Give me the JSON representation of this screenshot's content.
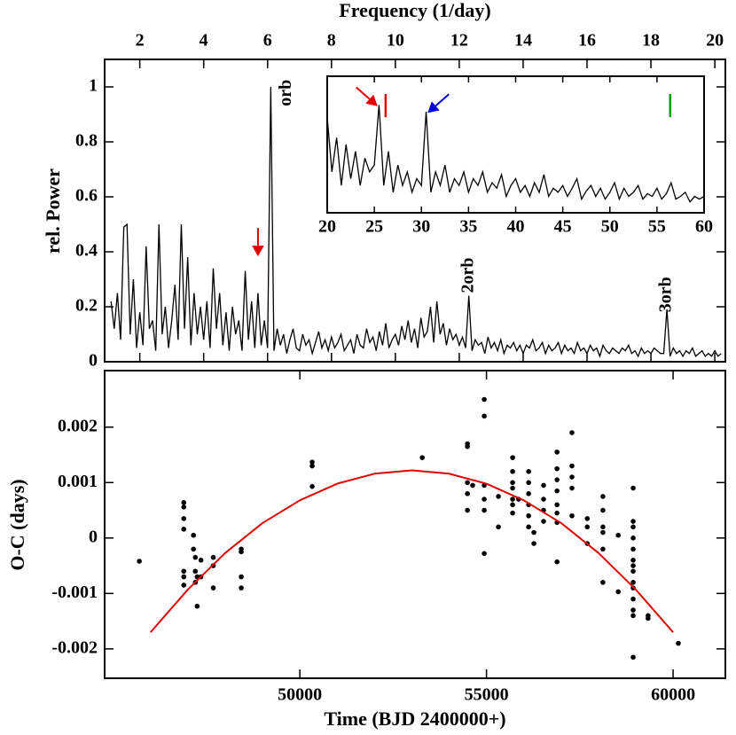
{
  "chart_data": [
    {
      "type": "line",
      "xlabel": "Frequency (1/day)",
      "ylabel": "rel. Power",
      "color": "#000000",
      "xlim": [
        0.9,
        20.33
      ],
      "ylim": [
        0,
        1.1
      ],
      "xticks": [
        2,
        4,
        6,
        8,
        10,
        12,
        14,
        16,
        18,
        20
      ],
      "yticks": [
        0,
        0.2,
        0.4,
        0.6,
        0.8,
        1
      ],
      "x": [
        1.1,
        1.2,
        1.3,
        1.4,
        1.5,
        1.6,
        1.7,
        1.8,
        1.9,
        2.0,
        2.1,
        2.2,
        2.3,
        2.4,
        2.5,
        2.6,
        2.7,
        2.8,
        2.9,
        3.0,
        3.1,
        3.2,
        3.3,
        3.4,
        3.5,
        3.6,
        3.7,
        3.8,
        3.9,
        4.0,
        4.1,
        4.2,
        4.3,
        4.4,
        4.5,
        4.6,
        4.7,
        4.8,
        4.9,
        5.0,
        5.1,
        5.2,
        5.3,
        5.4,
        5.5,
        5.6,
        5.7,
        5.8,
        5.9,
        6.0,
        6.1,
        6.2,
        6.3,
        6.4,
        6.5,
        6.6,
        6.7,
        6.8,
        6.9,
        7.0,
        7.1,
        7.2,
        7.3,
        7.4,
        7.5,
        7.6,
        7.7,
        7.8,
        7.9,
        8.0,
        8.1,
        8.2,
        8.3,
        8.4,
        8.5,
        8.6,
        8.7,
        8.8,
        8.9,
        9.0,
        9.1,
        9.2,
        9.3,
        9.4,
        9.5,
        9.6,
        9.7,
        9.8,
        9.9,
        10.0,
        10.1,
        10.2,
        10.3,
        10.4,
        10.5,
        10.6,
        10.7,
        10.8,
        10.9,
        11.0,
        11.1,
        11.2,
        11.3,
        11.4,
        11.5,
        11.6,
        11.7,
        11.8,
        11.9,
        12.0,
        12.1,
        12.2,
        12.3,
        12.4,
        12.5,
        12.6,
        12.7,
        12.8,
        12.9,
        13.0,
        13.1,
        13.2,
        13.3,
        13.4,
        13.5,
        13.6,
        13.7,
        13.8,
        13.9,
        14.0,
        14.1,
        14.2,
        14.3,
        14.4,
        14.5,
        14.6,
        14.7,
        14.8,
        14.9,
        15.0,
        15.1,
        15.2,
        15.3,
        15.4,
        15.5,
        15.6,
        15.7,
        15.8,
        15.9,
        16.0,
        16.1,
        16.2,
        16.3,
        16.4,
        16.5,
        16.6,
        16.7,
        16.8,
        16.9,
        17.0,
        17.1,
        17.2,
        17.3,
        17.4,
        17.5,
        17.6,
        17.7,
        17.8,
        17.9,
        18.0,
        18.1,
        18.2,
        18.3,
        18.4,
        18.5,
        18.6,
        18.7,
        18.8,
        18.9,
        19.0,
        19.1,
        19.2,
        19.3,
        19.4,
        19.5,
        19.6,
        19.7,
        19.8,
        19.9,
        20.0,
        20.1,
        20.2
      ],
      "values": [
        0.22,
        0.12,
        0.25,
        0.08,
        0.49,
        0.5,
        0.1,
        0.3,
        0.05,
        0.18,
        0.06,
        0.42,
        0.12,
        0.15,
        0.04,
        0.5,
        0.1,
        0.2,
        0.05,
        0.15,
        0.28,
        0.08,
        0.5,
        0.12,
        0.38,
        0.06,
        0.25,
        0.1,
        0.2,
        0.08,
        0.22,
        0.05,
        0.34,
        0.12,
        0.25,
        0.06,
        0.18,
        0.04,
        0.2,
        0.1,
        0.15,
        0.04,
        0.33,
        0.08,
        0.22,
        0.05,
        0.25,
        0.06,
        0.15,
        0.05,
        1.0,
        0.04,
        0.12,
        0.06,
        0.1,
        0.03,
        0.08,
        0.12,
        0.05,
        0.04,
        0.1,
        0.06,
        0.08,
        0.03,
        0.07,
        0.11,
        0.05,
        0.08,
        0.04,
        0.09,
        0.05,
        0.07,
        0.1,
        0.04,
        0.06,
        0.08,
        0.03,
        0.1,
        0.06,
        0.05,
        0.12,
        0.07,
        0.09,
        0.04,
        0.11,
        0.06,
        0.14,
        0.05,
        0.08,
        0.1,
        0.06,
        0.13,
        0.08,
        0.15,
        0.07,
        0.12,
        0.05,
        0.16,
        0.09,
        0.11,
        0.2,
        0.07,
        0.22,
        0.1,
        0.14,
        0.06,
        0.12,
        0.08,
        0.1,
        0.06,
        0.09,
        0.05,
        0.24,
        0.04,
        0.08,
        0.06,
        0.07,
        0.03,
        0.09,
        0.05,
        0.07,
        0.04,
        0.08,
        0.03,
        0.06,
        0.05,
        0.07,
        0.04,
        0.06,
        0.03,
        0.06,
        0.05,
        0.08,
        0.04,
        0.05,
        0.07,
        0.03,
        0.06,
        0.04,
        0.05,
        0.07,
        0.03,
        0.06,
        0.04,
        0.05,
        0.03,
        0.07,
        0.04,
        0.05,
        0.03,
        0.06,
        0.04,
        0.05,
        0.02,
        0.06,
        0.04,
        0.03,
        0.05,
        0.04,
        0.03,
        0.05,
        0.04,
        0.06,
        0.03,
        0.04,
        0.02,
        0.05,
        0.03,
        0.04,
        0.03,
        0.05,
        0.04,
        0.03,
        0.03,
        0.19,
        0.02,
        0.05,
        0.03,
        0.04,
        0.02,
        0.04,
        0.03,
        0.05,
        0.02,
        0.03,
        0.04,
        0.02,
        0.03,
        0.02,
        0.04,
        0.02,
        0.03
      ],
      "annotations": [
        {
          "text": "orb",
          "x": 6.6,
          "y": 0.93
        },
        {
          "text": "2orb",
          "x": 12.3,
          "y": 0.25
        },
        {
          "text": "3orb",
          "x": 18.5,
          "y": 0.18
        }
      ],
      "arrows": [
        {
          "x": 5.7,
          "y": 0.39,
          "color": "#e00000",
          "from": "above"
        }
      ]
    },
    {
      "type": "line",
      "color": "#000000",
      "xlim": [
        20,
        60
      ],
      "ylim": [
        0,
        1
      ],
      "xticks": [
        20,
        25,
        30,
        35,
        40,
        45,
        50,
        55,
        60
      ],
      "x": [
        20,
        20.5,
        21,
        21.5,
        22,
        22.5,
        23,
        23.5,
        24,
        24.5,
        25,
        25.5,
        26,
        26.5,
        27,
        27.5,
        28,
        28.5,
        29,
        29.5,
        30,
        30.5,
        31,
        31.5,
        32,
        32.5,
        33,
        33.5,
        34,
        34.5,
        35,
        35.5,
        36,
        36.5,
        37,
        37.5,
        38,
        38.5,
        39,
        39.5,
        40,
        40.5,
        41,
        41.5,
        42,
        42.5,
        43,
        43.5,
        44,
        44.5,
        45,
        45.5,
        46,
        46.5,
        47,
        47.5,
        48,
        48.5,
        49,
        49.5,
        50,
        50.5,
        51,
        51.5,
        52,
        52.5,
        53,
        53.5,
        54,
        54.5,
        55,
        55.5,
        56,
        56.5,
        57,
        57.5,
        58,
        58.5,
        59,
        59.5,
        60
      ],
      "values": [
        0.7,
        0.3,
        0.55,
        0.2,
        0.5,
        0.25,
        0.45,
        0.2,
        0.4,
        0.3,
        0.35,
        0.79,
        0.2,
        0.45,
        0.15,
        0.35,
        0.2,
        0.3,
        0.15,
        0.25,
        0.2,
        0.74,
        0.15,
        0.3,
        0.2,
        0.35,
        0.15,
        0.25,
        0.2,
        0.3,
        0.15,
        0.25,
        0.2,
        0.3,
        0.15,
        0.22,
        0.18,
        0.28,
        0.12,
        0.2,
        0.25,
        0.15,
        0.2,
        0.12,
        0.22,
        0.15,
        0.28,
        0.12,
        0.18,
        0.15,
        0.2,
        0.12,
        0.18,
        0.25,
        0.1,
        0.16,
        0.2,
        0.12,
        0.18,
        0.1,
        0.15,
        0.22,
        0.1,
        0.18,
        0.12,
        0.15,
        0.2,
        0.1,
        0.14,
        0.12,
        0.18,
        0.1,
        0.14,
        0.22,
        0.1,
        0.12,
        0.15,
        0.08,
        0.12,
        0.1,
        0.12
      ],
      "markers": [
        {
          "x": 26.2,
          "y": [
            0.7,
            0.87
          ],
          "color": "#e00000"
        },
        {
          "x": 56.4,
          "y": [
            0.7,
            0.87
          ],
          "color": "#00a000"
        }
      ],
      "arrows": [
        {
          "x": 25.2,
          "y": 0.79,
          "color": "#e00000",
          "from": "upper-left"
        },
        {
          "x": 30.8,
          "y": 0.74,
          "color": "#0000e0",
          "from": "upper-right"
        }
      ]
    },
    {
      "type": "scatter",
      "xlabel": "Time (BJD 2400000+)",
      "ylabel": "O-C (days)",
      "color": "#000000",
      "xlim": [
        44770,
        61400
      ],
      "ylim": [
        -0.00253,
        0.00302
      ],
      "xticks": [
        50000,
        55000,
        60000
      ],
      "yticks": [
        -0.002,
        -0.001,
        0,
        0.001,
        0.002
      ],
      "x": [
        45700,
        46890,
        46890,
        46890,
        46890,
        46890,
        46890,
        46890,
        47150,
        47150,
        47200,
        47200,
        47200,
        47250,
        47250,
        47350,
        47350,
        47680,
        47680,
        47680,
        48430,
        48430,
        48430,
        48430,
        50330,
        50330,
        50330,
        53280,
        54490,
        54490,
        54490,
        54490,
        54490,
        54630,
        54940,
        54940,
        54940,
        54940,
        54940,
        54940,
        55320,
        55320,
        55700,
        55700,
        55700,
        55700,
        55700,
        55700,
        55700,
        55860,
        56130,
        56130,
        56130,
        56130,
        56130,
        56130,
        56270,
        56270,
        56530,
        56530,
        56530,
        56530,
        56890,
        56890,
        56890,
        56890,
        56890,
        56890,
        56890,
        56890,
        57290,
        57290,
        57290,
        57290,
        57290,
        57700,
        57700,
        57700,
        58120,
        58120,
        58120,
        58120,
        58120,
        58120,
        58530,
        58530,
        58930,
        58930,
        58930,
        58930,
        58930,
        58930,
        58930,
        58930,
        58930,
        58930,
        58930,
        58930,
        58930,
        58930,
        59330,
        59330,
        60140
      ],
      "values": [
        -0.00042,
        0.00064,
        0.00056,
        0.00035,
        0.00016,
        -0.0006,
        -0.0007,
        -0.00085,
        5e-05,
        -0.0002,
        -0.00035,
        -0.0006,
        -0.0008,
        -0.00123,
        -0.0007,
        -0.0004,
        -0.0007,
        -0.00035,
        -0.0005,
        -0.0009,
        -0.0002,
        -0.00025,
        -0.0007,
        -0.0009,
        0.00137,
        0.0013,
        0.00093,
        0.00145,
        0.0017,
        0.00165,
        0.001,
        0.0008,
        0.0005,
        0.00095,
        0.0025,
        0.0022,
        0.00095,
        0.0007,
        0.0005,
        -0.00028,
        0.00075,
        0.0002,
        0.00145,
        0.0012,
        0.001,
        0.0009,
        0.0007,
        0.0006,
        0.00045,
        0.0007,
        0.0012,
        0.001,
        0.0008,
        0.0006,
        0.0004,
        0.0002,
        -0.0001,
        0.0001,
        0.00095,
        0.0007,
        0.0005,
        0.0003,
        0.00155,
        0.00125,
        0.00105,
        0.00085,
        0.0006,
        0.00045,
        0.00028,
        -0.00043,
        0.0019,
        0.0013,
        0.0011,
        0.0009,
        0.0004,
        0.00035,
        0.0002,
        -0.0001,
        0.00075,
        0.0005,
        0.0002,
        0.0001,
        -0.0002,
        -0.0008,
        5e-05,
        -0.00097,
        0.0009,
        0.0003,
        0.0002,
        0,
        -0.0002,
        -0.0004,
        -0.0005,
        -0.0006,
        -0.0008,
        -0.0009,
        -0.0011,
        -0.0013,
        -0.0014,
        -0.00215,
        -0.0014,
        -0.00145,
        -0.0019
      ],
      "fit": {
        "color": "#e00000",
        "x": [
          46000,
          47000,
          48000,
          49000,
          50000,
          51000,
          52000,
          53000,
          54000,
          55000,
          56000,
          57000,
          58000,
          59000,
          60000
        ],
        "values": [
          -0.0017,
          -0.00093,
          -0.00027,
          0.00027,
          0.00068,
          0.00098,
          0.00116,
          0.00122,
          0.00116,
          0.00098,
          0.00068,
          0.00027,
          -0.00027,
          -0.00093,
          -0.0017
        ]
      }
    }
  ]
}
